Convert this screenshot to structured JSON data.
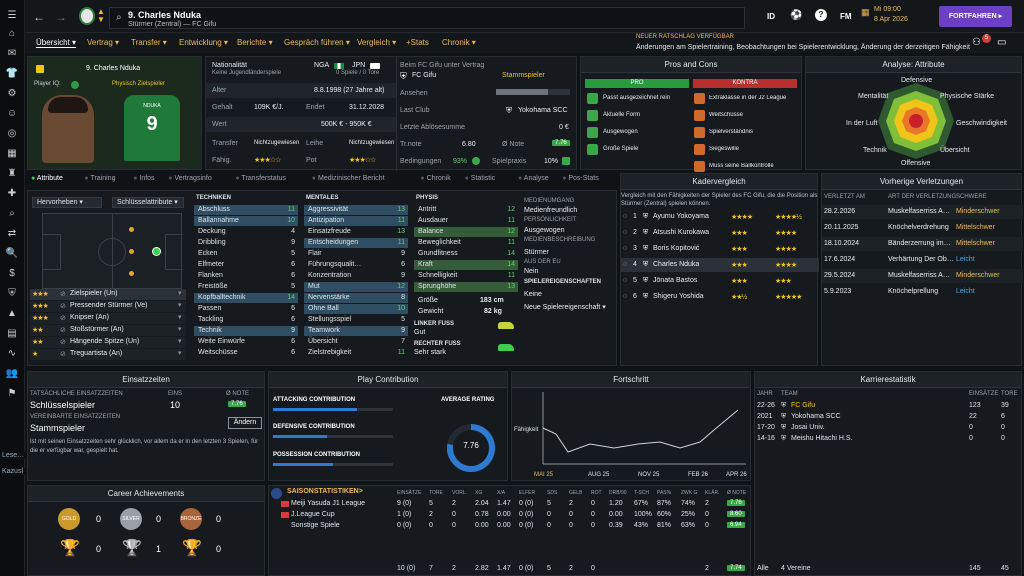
{
  "header": {
    "player_number_name": "9. Charles Nduka",
    "subtitle": "Stürmer (Zentral) — FC Gifu",
    "id_label": "ID",
    "fm_label": "FM",
    "time": "Mi 09:00",
    "date": "8 Apr 2026",
    "continue": "FORTFAHREN",
    "notif_count": "5"
  },
  "news": {
    "title": "NEUER RATSCHLAG VERFÜGBAR",
    "text": "Änderungen am Spielertraining, Beobachtungen bei Spielerentwicklung, Änderung der derzeitigen Fähigkeit"
  },
  "menu": [
    "Übersicht",
    "Vertrag",
    "Transfer",
    "Entwicklung",
    "Berichte",
    "Gespräch führen",
    "Vergleich",
    "+Stats",
    "Chronik"
  ],
  "card": {
    "name": "9. Charles Nduka",
    "iq_label": "Player IQ:",
    "role": "Physisch Zielspieler",
    "shirt_name": "NDUKA",
    "shirt_number": "9"
  },
  "info": {
    "nat_label": "Nationalität",
    "nat_sub": "Keine Jugendländerspiele",
    "nat1": "NGA",
    "nat2": "JPN",
    "caps": "0 Spiele / 0 Tore",
    "club_label": "Beim FC Gifu unter Vertrag",
    "club": "FC Gifu",
    "status": "Stammspieler",
    "alter_l": "Alter",
    "alter": "8.8.1998 (27 Jahre alt)",
    "ansehen_l": "Ansehen",
    "gehalt_l": "Gehalt",
    "gehalt": "109K €/J.",
    "ende_l": "Endet",
    "ende": "31.12.2028",
    "lastclub_l": "Last Club",
    "lastclub": "Yokohama SCC",
    "wert_l": "Wert",
    "wert": "500K € - 950K €",
    "abl_l": "Letzte Ablösesumme",
    "abl": "0 €",
    "transfer_l": "Transfer",
    "transfer": "Nichtzugewiesen",
    "leihe_l": "Leihe",
    "leihe": "Nichtzugewiesen",
    "trnote_l": "Tr.note",
    "trnote": "6.80",
    "note_l": "Ø Note",
    "note": "7.76",
    "fah_l": "Fähig.",
    "pot_l": "Pot",
    "bed_l": "Bedingungen",
    "bed": "93%",
    "spiel_l": "Spielpraxis",
    "spiel": "10%"
  },
  "pros": {
    "title": "Pros and Cons",
    "pro": "PRO",
    "kontra": "KONTRA",
    "pros": [
      "Passt ausgezeichnet rein",
      "Aktuelle Form",
      "Ausgewogen",
      "Große Spiele"
    ],
    "cons": [
      "Extraklasse in der J2 League",
      "Weitschüsse",
      "Spielverständnis",
      "Siegeswille",
      "Muss seine Ballkontrolle"
    ]
  },
  "analysis": {
    "title": "Analyse: Attribute",
    "labels": [
      "Defensive",
      "Physische Stärke",
      "Geschwindigkeit",
      "Übersicht",
      "Offensive",
      "Technik",
      "In der Luft",
      "Mentalität"
    ]
  },
  "tabs": [
    "Attribute",
    "Training",
    "Infos",
    "Vertragsinfo",
    "Transferstatus",
    "Medizinischer Bericht",
    "Chronik",
    "Statistic",
    "Analyse",
    "Pos-Stats"
  ],
  "pitch": {
    "hervor": "Hervorheben",
    "schl": "Schlüsselattribute"
  },
  "roles": [
    {
      "name": "Zielspieler (Un)",
      "stars": "★★★"
    },
    {
      "name": "Pressender Stürmer (Ve)",
      "stars": "★★★"
    },
    {
      "name": "Knipser (An)",
      "stars": "★★★"
    },
    {
      "name": "Stoßstürmer (An)",
      "stars": "★★"
    },
    {
      "name": "Hängende Spitze (Un)",
      "stars": "★★"
    },
    {
      "name": "Treguartista (An)",
      "stars": "★"
    }
  ],
  "tech": {
    "title": "TECHNIKEN",
    "rows": [
      [
        "Abschluss",
        "11"
      ],
      [
        "Ballannahme",
        "10"
      ],
      [
        "Deckung",
        "4"
      ],
      [
        "Dribbling",
        "9"
      ],
      [
        "Ecken",
        "5"
      ],
      [
        "Elfmeter",
        "6"
      ],
      [
        "Flanken",
        "6"
      ],
      [
        "Freistöße",
        "5"
      ],
      [
        "Kopfballtechnik",
        "14"
      ],
      [
        "Passen",
        "6"
      ],
      [
        "Tackling",
        "6"
      ],
      [
        "Technik",
        "9"
      ],
      [
        "Weite Einwürfe",
        "6"
      ],
      [
        "Weitschüsse",
        "6"
      ]
    ]
  },
  "ment": {
    "title": "MENTALES",
    "rows": [
      [
        "Aggressivität",
        "13"
      ],
      [
        "Antizipation",
        "11"
      ],
      [
        "Einsatzfreude",
        "13"
      ],
      [
        "Entscheidungen",
        "11"
      ],
      [
        "Flair",
        "9"
      ],
      [
        "Führungsqualit…",
        "6"
      ],
      [
        "Konzentration",
        "9"
      ],
      [
        "Mut",
        "12"
      ],
      [
        "Nervenstärke",
        "8"
      ],
      [
        "Ohne Ball",
        "10"
      ],
      [
        "Stellungsspiel",
        "5"
      ],
      [
        "Teamwork",
        "9"
      ],
      [
        "Übersicht",
        "7"
      ],
      [
        "Zielstrebigkeit",
        "11"
      ]
    ]
  },
  "phys": {
    "title": "PHYSIS",
    "rows": [
      [
        "Antritt",
        "12"
      ],
      [
        "Ausdauer",
        "11"
      ],
      [
        "Balance",
        "12"
      ],
      [
        "Beweglichkeit",
        "11"
      ],
      [
        "Grundfitness",
        "14"
      ],
      [
        "Kraft",
        "14"
      ],
      [
        "Schnelligkeit",
        "11"
      ],
      [
        "Sprunghöhe",
        "13"
      ]
    ],
    "height_l": "Größe",
    "height": "183 cm",
    "weight_l": "Gewicht",
    "weight": "82 kg",
    "lf_l": "LINKER FUSS",
    "lf": "Gut",
    "rf_l": "RECHTER FUSS",
    "rf": "Sehr stark"
  },
  "medien": {
    "t1": "MEDIENUMGANG",
    "v1": "Medienfreundlich",
    "t2": "PERSÖNLICHKEIT",
    "v2": "Ausgewogen",
    "t3": "MEDIENBESCHREIBUNG",
    "v3": "Stürmer",
    "t4": "AUS DER EU",
    "v4": "Nein",
    "t5": "SPIELEREIGENSCHAFTEN",
    "v5": "Keine",
    "v6": "Neue Spielereigenschaft"
  },
  "kader": {
    "title": "Kadervergleich",
    "desc": "Vergleich mit den Fähigkeiten der Spieler des FC Gifu, die die Position als Stürmer (Zentral) spielen können.",
    "rows": [
      [
        "1",
        "Ayumu Yokoyama",
        "★★★★",
        "★★★★½"
      ],
      [
        "2",
        "Atsushi Kurokawa",
        "★★★",
        "★★★★"
      ],
      [
        "3",
        "Boris Kopitović",
        "★★★",
        "★★★★"
      ],
      [
        "4",
        "Charles Nduka",
        "★★★",
        "★★★★"
      ],
      [
        "5",
        "Jönata Bastos",
        "★★★",
        "★★★"
      ],
      [
        "6",
        "Shigeru Yoshida",
        "★★½",
        "★★★★★"
      ]
    ]
  },
  "injuries": {
    "title": "Vorherige Verletzungen",
    "h1": "VERLETZT AM",
    "h2": "ART DER VERLETZUNG",
    "h3": "SCHWERE",
    "rows": [
      [
        "28.2.2026",
        "Muskelfaserriss A…",
        "Minderschwer"
      ],
      [
        "20.11.2025",
        "Knöchelverdrehung",
        "Mittelschwer"
      ],
      [
        "18.10.2024",
        "Bänderzerrung im…",
        "Mittelschwer"
      ],
      [
        "17.6.2024",
        "Verhärtung Der Ob…",
        "Leicht"
      ],
      [
        "29.5.2024",
        "Muskelfaserriss A…",
        "Minderschwer"
      ],
      [
        "5.9.2023",
        "Knöchelprellung",
        "Leicht"
      ]
    ]
  },
  "einsatz": {
    "title": "Einsatzzeiten",
    "h1": "TATSÄCHLICHE EINSATZZEITEN",
    "h2": "EINS",
    "h3": "Ø NOTE",
    "val1": "Schlüsselspieler",
    "eins": "10",
    "note": "7.76",
    "h4": "VEREINBARTE EINSATZZEITEN",
    "val2": "Stammspieler",
    "btn": "Ändern",
    "desc": "Ist mit seinen Einsatzzeiten sehr glücklich, vor allem da er in den letzten 3 Spielen, für die er verfügbar war, gespielt hat."
  },
  "play": {
    "title": "Play Contribution",
    "a": "ATTACKING CONTRIBUTION",
    "d": "DEFENSIVE CONTRIBUTION",
    "p": "POSSESSION CONTRIBUTION",
    "avg_l": "AVERAGE RATING",
    "avg": "7.76",
    "a_v": 0.7,
    "d_v": 0.45,
    "p_v": 0.5
  },
  "fort": {
    "title": "Fortschritt",
    "ylabel": "Fähigkeit",
    "x": [
      "MAI 25",
      "AUG 25",
      "NOV 25",
      "FEB 26",
      "APR 26"
    ]
  },
  "career": {
    "title": "Karrierestatistik",
    "h1": "JAHR",
    "h2": "TEAM",
    "h3": "EINSÄTZE",
    "h4": "TORE",
    "rows": [
      [
        "22-26",
        "FC Gifu",
        "123",
        "39"
      ],
      [
        "2021",
        "Yokohama SCC",
        "22",
        "6"
      ],
      [
        "17-20",
        "Josai Univ.",
        "0",
        "0"
      ],
      [
        "14-16",
        "Meishu Hitachi H.S.",
        "0",
        "0"
      ]
    ],
    "total_l": "Alle",
    "total_team": "4 Vereine",
    "total_e": "145",
    "total_t": "45"
  },
  "achieve": {
    "title": "Career Achievements",
    "gold": "GOLD",
    "silver": "SILVER",
    "bronze": "BRONZE",
    "g": "0",
    "s": "0",
    "b": "0",
    "t1": "0",
    "t2": "1",
    "t3": "0",
    "t4": "0"
  },
  "season": {
    "title": "SAISONSTATISTIKEN>",
    "cols": [
      "EINSÄTZE",
      "TORE",
      "VORL.",
      "XG",
      "X/A",
      "ELFER",
      "SDS",
      "GELB",
      "ROT",
      "DRB/90",
      "T-SCH",
      "PAS%",
      "ZWK G",
      "KLÄR.",
      "Ø NOTE"
    ],
    "rows": [
      {
        "name": "Meiji Yasuda J1 League",
        "v": [
          "9 (0)",
          "5",
          "2",
          "2.04",
          "1.47",
          "0 (0)",
          "5",
          "2",
          "0",
          "1.20",
          "67%",
          "87%",
          "74%",
          "2",
          "7.76"
        ]
      },
      {
        "name": "J.League Cup",
        "v": [
          "1 (0)",
          "2",
          "0",
          "0.78",
          "0.00",
          "0 (0)",
          "0",
          "0",
          "0",
          "0.00",
          "100%",
          "60%",
          "25%",
          "0",
          "8.60"
        ]
      },
      {
        "name": "Sonstige Spiele",
        "v": [
          "0 (0)",
          "0",
          "0",
          "0.00",
          "0.00",
          "0 (0)",
          "0",
          "0",
          "0",
          "0.39",
          "43%",
          "81%",
          "63%",
          "0",
          "6.94"
        ]
      }
    ],
    "total": [
      "10 (0)",
      "7",
      "2",
      "2.82",
      "1.47",
      "0 (0)",
      "5",
      "2",
      "0",
      "",
      "",
      "",
      "",
      "2",
      "7.74"
    ]
  },
  "left_labels": {
    "a": "Lese…",
    "b": "Kazusl"
  }
}
